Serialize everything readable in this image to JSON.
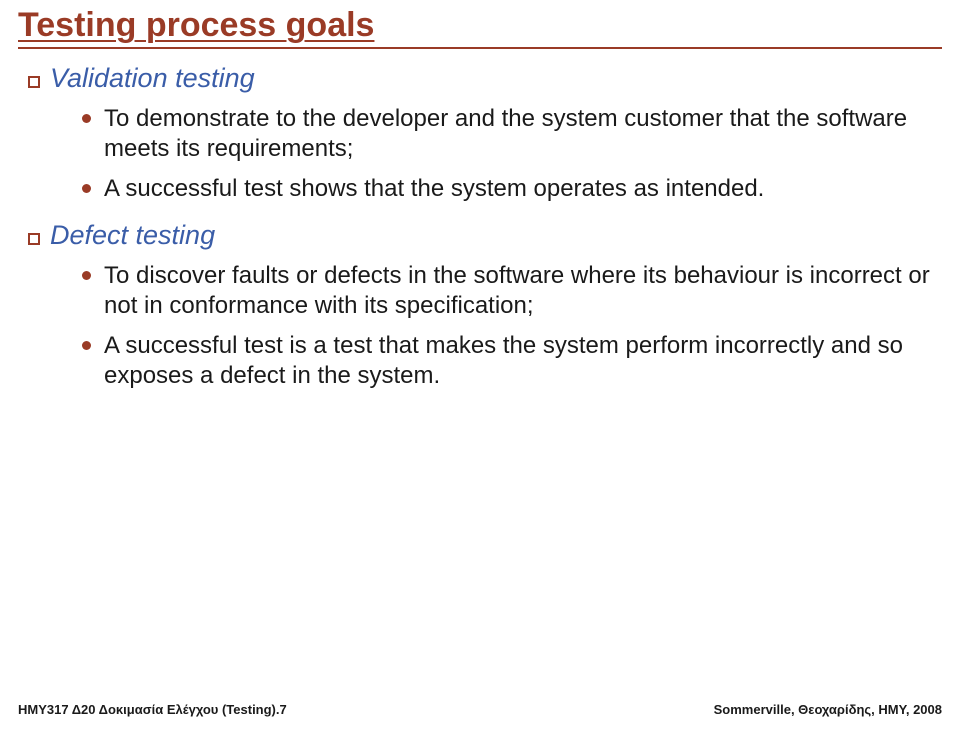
{
  "title": "Testing process goals",
  "colors": {
    "accent": "#9a3b26",
    "section": "#3a5da8",
    "text": "#1a1a1a",
    "bg": "#ffffff"
  },
  "sections": [
    {
      "heading": "Validation testing",
      "items": [
        "To demonstrate to the developer and the system customer that the software meets its requirements;",
        "A successful test shows that the system operates as intended."
      ]
    },
    {
      "heading": "Defect testing",
      "items": [
        "To discover faults or defects in the software where its behaviour is incorrect or not in conformance with its specification;",
        "A successful test is a test that makes the system perform incorrectly and so exposes a defect in the system."
      ]
    }
  ],
  "footer": {
    "left": "ΗΜΥ317 Δ20 Δοκιμασία Ελέγχου (Testing).7",
    "right": "Sommerville, Θεοχαρίδης, ΗΜΥ, 2008"
  }
}
